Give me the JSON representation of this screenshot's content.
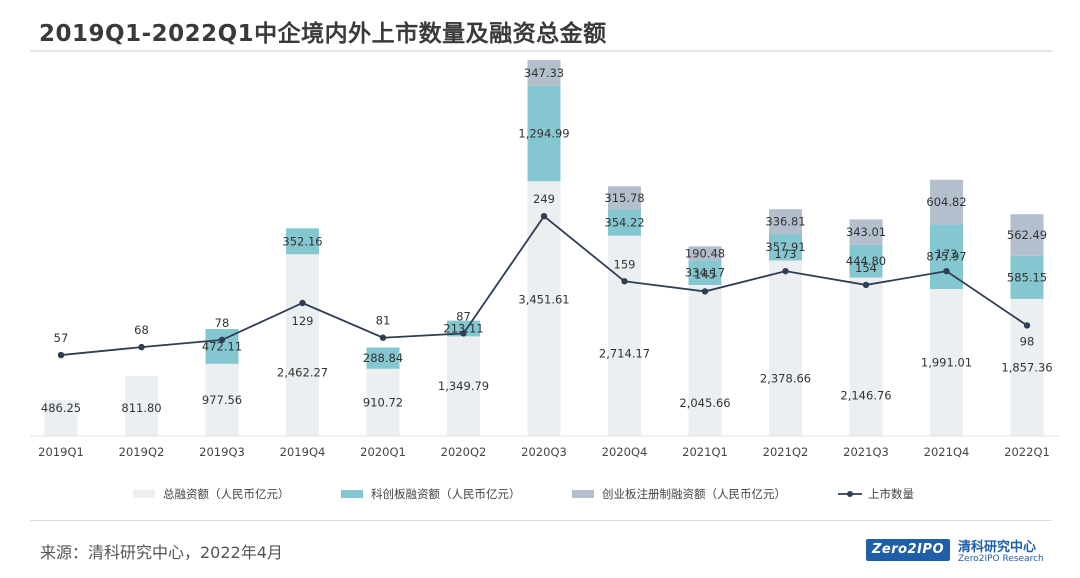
{
  "title": "2019Q1-2022Q1中企境内外上市数量及融资总金额",
  "source": "来源：清科研究中心，2022年4月",
  "logo": {
    "box_text": "Zero2IPO",
    "cn": "清科研究中心",
    "en": "Zero2IPO Research"
  },
  "colors": {
    "total": "#eceff1",
    "star": "#85c7d1",
    "chinext": "#b3bfcc",
    "line": "#2f3e52"
  },
  "chart_data": {
    "type": "bar",
    "stacked": true,
    "categories": [
      "2019Q1",
      "2019Q2",
      "2019Q3",
      "2019Q4",
      "2020Q1",
      "2020Q2",
      "2020Q3",
      "2020Q4",
      "2021Q1",
      "2021Q2",
      "2021Q3",
      "2021Q4",
      "2022Q1"
    ],
    "series": [
      {
        "name": "总融资额（人民币亿元）",
        "type": "bar",
        "values": [
          486.25,
          811.8,
          977.56,
          2462.27,
          910.72,
          1349.79,
          3451.61,
          2714.17,
          2045.66,
          2378.66,
          2146.76,
          1991.01,
          1857.36
        ],
        "labels": [
          "486.25",
          "811.80",
          "977.56",
          "2,462.27",
          "910.72",
          "1,349.79",
          "3,451.61",
          "2,714.17",
          "2,045.66",
          "2,378.66",
          "2,146.76",
          "1,991.01",
          "1,857.36"
        ]
      },
      {
        "name": "科创板融资额（人民币亿元）",
        "type": "bar",
        "values": [
          null,
          null,
          472.11,
          352.16,
          288.84,
          213.11,
          1294.99,
          354.22,
          334.17,
          357.91,
          444.8,
          875.97,
          585.15
        ],
        "labels": [
          "",
          "",
          "472.11",
          "352.16",
          "288.84",
          "213.11",
          "1,294.99",
          "354.22",
          "334.17",
          "357.91",
          "444.80",
          "875.97",
          "585.15"
        ]
      },
      {
        "name": "创业板注册制融资额（人民币亿元）",
        "type": "bar",
        "values": [
          null,
          null,
          null,
          null,
          null,
          null,
          347.33,
          315.78,
          190.48,
          336.81,
          343.01,
          604.82,
          562.49
        ],
        "labels": [
          "",
          "",
          "",
          "",
          "",
          "",
          "347.33",
          "315.78",
          "190.48",
          "336.81",
          "343.01",
          "604.82",
          "562.49"
        ]
      },
      {
        "name": "上市数量",
        "type": "line",
        "values": [
          57,
          68,
          78,
          129,
          81,
          87,
          249,
          159,
          145,
          173,
          154,
          173,
          98
        ],
        "labels": [
          "57",
          "68",
          "78",
          "129",
          "81",
          "87",
          "249",
          "159",
          "145",
          "173",
          "154",
          "173",
          "98"
        ]
      }
    ],
    "legend_position": "bottom",
    "grid": false
  }
}
